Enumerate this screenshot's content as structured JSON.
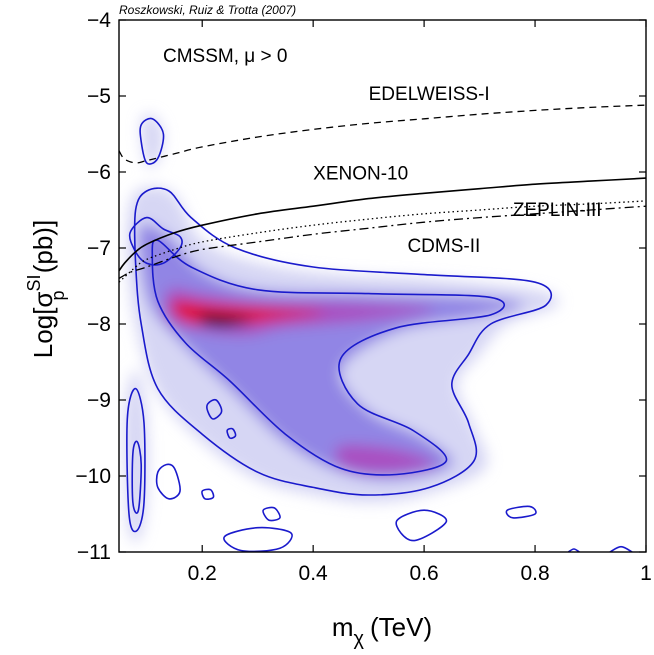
{
  "chart_data": {
    "type": "heatmap",
    "credit": "Roszkowski, Ruiz & Trotta (2007)",
    "model_label": "CMSSM, μ > 0",
    "xlabel": {
      "base": "m",
      "sub": "χ",
      "rest": "(TeV)"
    },
    "ylabel": {
      "pre": "Log[σ",
      "sub": "p",
      "sup": "SI",
      "post": " (pb)]"
    },
    "xlim": [
      0.05,
      1.0
    ],
    "ylim": [
      -11,
      -4
    ],
    "xticks": [
      {
        "value": 0.2,
        "label": "0.2"
      },
      {
        "value": 0.4,
        "label": "0.4"
      },
      {
        "value": 0.6,
        "label": "0.6"
      },
      {
        "value": 0.8,
        "label": "0.8"
      },
      {
        "value": 1.0,
        "label": "1"
      }
    ],
    "yticks": [
      {
        "value": -11,
        "label": "−11"
      },
      {
        "value": -10,
        "label": "−10"
      },
      {
        "value": -9,
        "label": "−9"
      },
      {
        "value": -8,
        "label": "−8"
      },
      {
        "value": -7,
        "label": "−7"
      },
      {
        "value": -6,
        "label": "−6"
      },
      {
        "value": -5,
        "label": "−5"
      },
      {
        "value": -4,
        "label": "−4"
      }
    ],
    "colors": {
      "low": "#c8c8f0",
      "mid": "#7a6ae0",
      "high": "#e8001e",
      "peak": "#000000",
      "contour": "#1a1acc"
    },
    "probability_peak": [
      0.235,
      -7.95
    ],
    "density_regions": [
      {
        "level": 0.35,
        "points": [
          [
            0.07,
            -6.4
          ],
          [
            0.1,
            -6.2
          ],
          [
            0.15,
            -6.3
          ],
          [
            0.2,
            -6.9
          ],
          [
            0.3,
            -7.2
          ],
          [
            0.45,
            -7.35
          ],
          [
            0.6,
            -7.4
          ],
          [
            0.8,
            -7.55
          ],
          [
            0.84,
            -7.75
          ],
          [
            0.75,
            -8.0
          ],
          [
            0.7,
            -8.4
          ],
          [
            0.66,
            -8.8
          ],
          [
            0.69,
            -9.35
          ],
          [
            0.71,
            -9.9
          ],
          [
            0.6,
            -10.25
          ],
          [
            0.5,
            -10.35
          ],
          [
            0.4,
            -10.25
          ],
          [
            0.3,
            -10.05
          ],
          [
            0.2,
            -9.55
          ],
          [
            0.12,
            -8.9
          ],
          [
            0.08,
            -8.0
          ],
          [
            0.065,
            -7.1
          ]
        ]
      },
      {
        "level": 0.5,
        "points": [
          [
            0.09,
            -6.7
          ],
          [
            0.14,
            -6.85
          ],
          [
            0.2,
            -7.3
          ],
          [
            0.3,
            -7.55
          ],
          [
            0.5,
            -7.6
          ],
          [
            0.7,
            -7.65
          ],
          [
            0.78,
            -7.75
          ],
          [
            0.7,
            -7.9
          ],
          [
            0.55,
            -8.1
          ],
          [
            0.45,
            -8.6
          ],
          [
            0.5,
            -9.15
          ],
          [
            0.6,
            -9.5
          ],
          [
            0.65,
            -9.85
          ],
          [
            0.55,
            -10.05
          ],
          [
            0.45,
            -9.95
          ],
          [
            0.35,
            -9.55
          ],
          [
            0.25,
            -8.85
          ],
          [
            0.17,
            -8.3
          ],
          [
            0.11,
            -7.8
          ],
          [
            0.09,
            -7.2
          ]
        ]
      },
      {
        "level": 0.7,
        "points": [
          [
            0.14,
            -7.55
          ],
          [
            0.2,
            -7.6
          ],
          [
            0.3,
            -7.7
          ],
          [
            0.45,
            -7.72
          ],
          [
            0.62,
            -7.8
          ],
          [
            0.5,
            -7.95
          ],
          [
            0.35,
            -8.05
          ],
          [
            0.28,
            -8.15
          ],
          [
            0.2,
            -8.1
          ],
          [
            0.14,
            -7.95
          ]
        ]
      },
      {
        "level": 0.7,
        "points": [
          [
            0.45,
            -9.6
          ],
          [
            0.55,
            -9.65
          ],
          [
            0.62,
            -9.85
          ],
          [
            0.52,
            -9.95
          ],
          [
            0.45,
            -9.85
          ]
        ]
      },
      {
        "level": 0.9,
        "points": [
          [
            0.15,
            -7.7
          ],
          [
            0.22,
            -7.75
          ],
          [
            0.33,
            -7.8
          ],
          [
            0.42,
            -7.85
          ],
          [
            0.32,
            -7.95
          ],
          [
            0.25,
            -8.02
          ],
          [
            0.18,
            -7.98
          ],
          [
            0.15,
            -7.85
          ]
        ]
      },
      {
        "level": 1.0,
        "points": [
          [
            0.2,
            -7.88
          ],
          [
            0.25,
            -7.9
          ],
          [
            0.29,
            -7.95
          ],
          [
            0.24,
            -8.03
          ],
          [
            0.2,
            -7.98
          ]
        ]
      },
      {
        "level": 0.4,
        "points": [
          [
            0.06,
            -9.2
          ],
          [
            0.08,
            -8.6
          ],
          [
            0.1,
            -9.2
          ],
          [
            0.1,
            -10.3
          ],
          [
            0.085,
            -10.85
          ],
          [
            0.065,
            -10.6
          ]
        ]
      },
      {
        "level": 0.3,
        "points": [
          [
            0.09,
            -5.35
          ],
          [
            0.11,
            -5.25
          ],
          [
            0.13,
            -5.5
          ],
          [
            0.12,
            -5.85
          ],
          [
            0.1,
            -5.9
          ]
        ]
      }
    ],
    "contours": [
      [
        [
          0.08,
          -6.5
        ],
        [
          0.1,
          -6.25
        ],
        [
          0.14,
          -6.25
        ],
        [
          0.18,
          -6.6
        ],
        [
          0.26,
          -7.0
        ],
        [
          0.4,
          -7.25
        ],
        [
          0.6,
          -7.35
        ],
        [
          0.8,
          -7.45
        ],
        [
          0.82,
          -7.75
        ],
        [
          0.72,
          -8.0
        ],
        [
          0.68,
          -8.4
        ],
        [
          0.65,
          -8.8
        ],
        [
          0.68,
          -9.3
        ],
        [
          0.69,
          -9.8
        ],
        [
          0.61,
          -10.15
        ],
        [
          0.5,
          -10.25
        ],
        [
          0.4,
          -10.15
        ],
        [
          0.3,
          -9.95
        ],
        [
          0.2,
          -9.45
        ],
        [
          0.12,
          -8.85
        ],
        [
          0.09,
          -8.0
        ],
        [
          0.08,
          -7.2
        ],
        [
          0.08,
          -6.5
        ]
      ],
      [
        [
          0.12,
          -6.9
        ],
        [
          0.18,
          -7.25
        ],
        [
          0.3,
          -7.55
        ],
        [
          0.5,
          -7.6
        ],
        [
          0.72,
          -7.65
        ],
        [
          0.72,
          -7.88
        ],
        [
          0.55,
          -8.05
        ],
        [
          0.45,
          -8.45
        ],
        [
          0.48,
          -9.05
        ],
        [
          0.58,
          -9.4
        ],
        [
          0.64,
          -9.8
        ],
        [
          0.55,
          -9.98
        ],
        [
          0.45,
          -9.9
        ],
        [
          0.35,
          -9.45
        ],
        [
          0.25,
          -8.75
        ],
        [
          0.17,
          -8.25
        ],
        [
          0.12,
          -7.7
        ],
        [
          0.11,
          -7.1
        ],
        [
          0.12,
          -6.9
        ]
      ],
      [
        [
          0.07,
          -6.8
        ],
        [
          0.1,
          -6.6
        ],
        [
          0.13,
          -6.75
        ],
        [
          0.16,
          -6.85
        ],
        [
          0.16,
          -7.0
        ],
        [
          0.13,
          -7.2
        ],
        [
          0.1,
          -7.2
        ],
        [
          0.08,
          -7.05
        ],
        [
          0.07,
          -6.8
        ]
      ],
      [
        [
          0.09,
          -5.38
        ],
        [
          0.11,
          -5.3
        ],
        [
          0.13,
          -5.5
        ],
        [
          0.12,
          -5.82
        ],
        [
          0.1,
          -5.88
        ],
        [
          0.09,
          -5.6
        ],
        [
          0.09,
          -5.38
        ]
      ],
      [
        [
          0.065,
          -9.25
        ],
        [
          0.08,
          -8.85
        ],
        [
          0.095,
          -9.3
        ],
        [
          0.095,
          -10.35
        ],
        [
          0.082,
          -10.72
        ],
        [
          0.068,
          -10.5
        ],
        [
          0.065,
          -9.25
        ]
      ],
      [
        [
          0.075,
          -9.7
        ],
        [
          0.083,
          -9.55
        ],
        [
          0.09,
          -9.85
        ],
        [
          0.085,
          -10.45
        ],
        [
          0.075,
          -10.35
        ],
        [
          0.075,
          -9.7
        ]
      ],
      [
        [
          0.21,
          -9.05
        ],
        [
          0.225,
          -9.0
        ],
        [
          0.235,
          -9.15
        ],
        [
          0.22,
          -9.25
        ],
        [
          0.21,
          -9.15
        ],
        [
          0.21,
          -9.05
        ]
      ],
      [
        [
          0.245,
          -9.4
        ],
        [
          0.255,
          -9.38
        ],
        [
          0.26,
          -9.47
        ],
        [
          0.25,
          -9.5
        ],
        [
          0.245,
          -9.4
        ]
      ],
      [
        [
          0.12,
          -9.95
        ],
        [
          0.135,
          -9.85
        ],
        [
          0.15,
          -9.9
        ],
        [
          0.16,
          -10.2
        ],
        [
          0.14,
          -10.3
        ],
        [
          0.12,
          -10.15
        ],
        [
          0.12,
          -9.95
        ]
      ],
      [
        [
          0.24,
          -10.8
        ],
        [
          0.3,
          -10.68
        ],
        [
          0.36,
          -10.75
        ],
        [
          0.34,
          -10.95
        ],
        [
          0.27,
          -10.98
        ],
        [
          0.24,
          -10.8
        ]
      ],
      [
        [
          0.55,
          -10.6
        ],
        [
          0.6,
          -10.45
        ],
        [
          0.64,
          -10.6
        ],
        [
          0.58,
          -10.85
        ],
        [
          0.55,
          -10.6
        ]
      ],
      [
        [
          0.31,
          -10.45
        ],
        [
          0.33,
          -10.42
        ],
        [
          0.34,
          -10.55
        ],
        [
          0.32,
          -10.58
        ],
        [
          0.31,
          -10.45
        ]
      ],
      [
        [
          0.2,
          -10.2
        ],
        [
          0.215,
          -10.18
        ],
        [
          0.22,
          -10.28
        ],
        [
          0.205,
          -10.3
        ],
        [
          0.2,
          -10.2
        ]
      ],
      [
        [
          0.75,
          -10.45
        ],
        [
          0.79,
          -10.4
        ],
        [
          0.8,
          -10.5
        ],
        [
          0.76,
          -10.55
        ],
        [
          0.75,
          -10.45
        ]
      ],
      [
        [
          0.935,
          -11.0
        ],
        [
          0.955,
          -10.93
        ],
        [
          0.975,
          -11.0
        ]
      ],
      [
        [
          0.86,
          -11.0
        ],
        [
          0.87,
          -10.96
        ],
        [
          0.88,
          -11.0
        ]
      ]
    ],
    "limits": [
      {
        "name": "EDELWEISS-I",
        "style": "dashed",
        "label_at": [
          0.5,
          -5.05
        ],
        "points": [
          [
            0.05,
            -5.72
          ],
          [
            0.06,
            -5.83
          ],
          [
            0.08,
            -5.88
          ],
          [
            0.1,
            -5.85
          ],
          [
            0.15,
            -5.76
          ],
          [
            0.2,
            -5.67
          ],
          [
            0.3,
            -5.54
          ],
          [
            0.4,
            -5.44
          ],
          [
            0.5,
            -5.36
          ],
          [
            0.6,
            -5.3
          ],
          [
            0.7,
            -5.24
          ],
          [
            0.8,
            -5.19
          ],
          [
            0.9,
            -5.15
          ],
          [
            1.0,
            -5.12
          ]
        ]
      },
      {
        "name": "XENON-10",
        "style": "solid",
        "label_at": [
          0.4,
          -6.1
        ],
        "points": [
          [
            0.05,
            -7.3
          ],
          [
            0.06,
            -7.2
          ],
          [
            0.08,
            -7.05
          ],
          [
            0.1,
            -6.95
          ],
          [
            0.15,
            -6.8
          ],
          [
            0.2,
            -6.7
          ],
          [
            0.3,
            -6.55
          ],
          [
            0.4,
            -6.45
          ],
          [
            0.5,
            -6.35
          ],
          [
            0.6,
            -6.28
          ],
          [
            0.7,
            -6.22
          ],
          [
            0.8,
            -6.16
          ],
          [
            0.9,
            -6.12
          ],
          [
            1.0,
            -6.08
          ]
        ]
      },
      {
        "name": "ZEPLIN-III",
        "style": "dotted",
        "label_at": [
          0.76,
          -6.58
        ],
        "points": [
          [
            0.05,
            -7.45
          ],
          [
            0.08,
            -7.25
          ],
          [
            0.1,
            -7.15
          ],
          [
            0.15,
            -7.02
          ],
          [
            0.2,
            -6.92
          ],
          [
            0.3,
            -6.8
          ],
          [
            0.4,
            -6.7
          ],
          [
            0.5,
            -6.62
          ],
          [
            0.6,
            -6.55
          ],
          [
            0.7,
            -6.5
          ],
          [
            0.8,
            -6.45
          ],
          [
            0.9,
            -6.42
          ],
          [
            1.0,
            -6.38
          ]
        ]
      },
      {
        "name": "CDMS-II",
        "style": "dashdot",
        "label_at": [
          0.57,
          -7.05
        ],
        "points": [
          [
            0.05,
            -7.4
          ],
          [
            0.07,
            -7.32
          ],
          [
            0.1,
            -7.25
          ],
          [
            0.15,
            -7.12
          ],
          [
            0.2,
            -7.02
          ],
          [
            0.3,
            -6.92
          ],
          [
            0.4,
            -6.82
          ],
          [
            0.5,
            -6.74
          ],
          [
            0.6,
            -6.66
          ],
          [
            0.7,
            -6.6
          ],
          [
            0.8,
            -6.55
          ],
          [
            0.9,
            -6.5
          ],
          [
            1.0,
            -6.45
          ]
        ]
      }
    ],
    "grid": false,
    "legend": "none"
  }
}
